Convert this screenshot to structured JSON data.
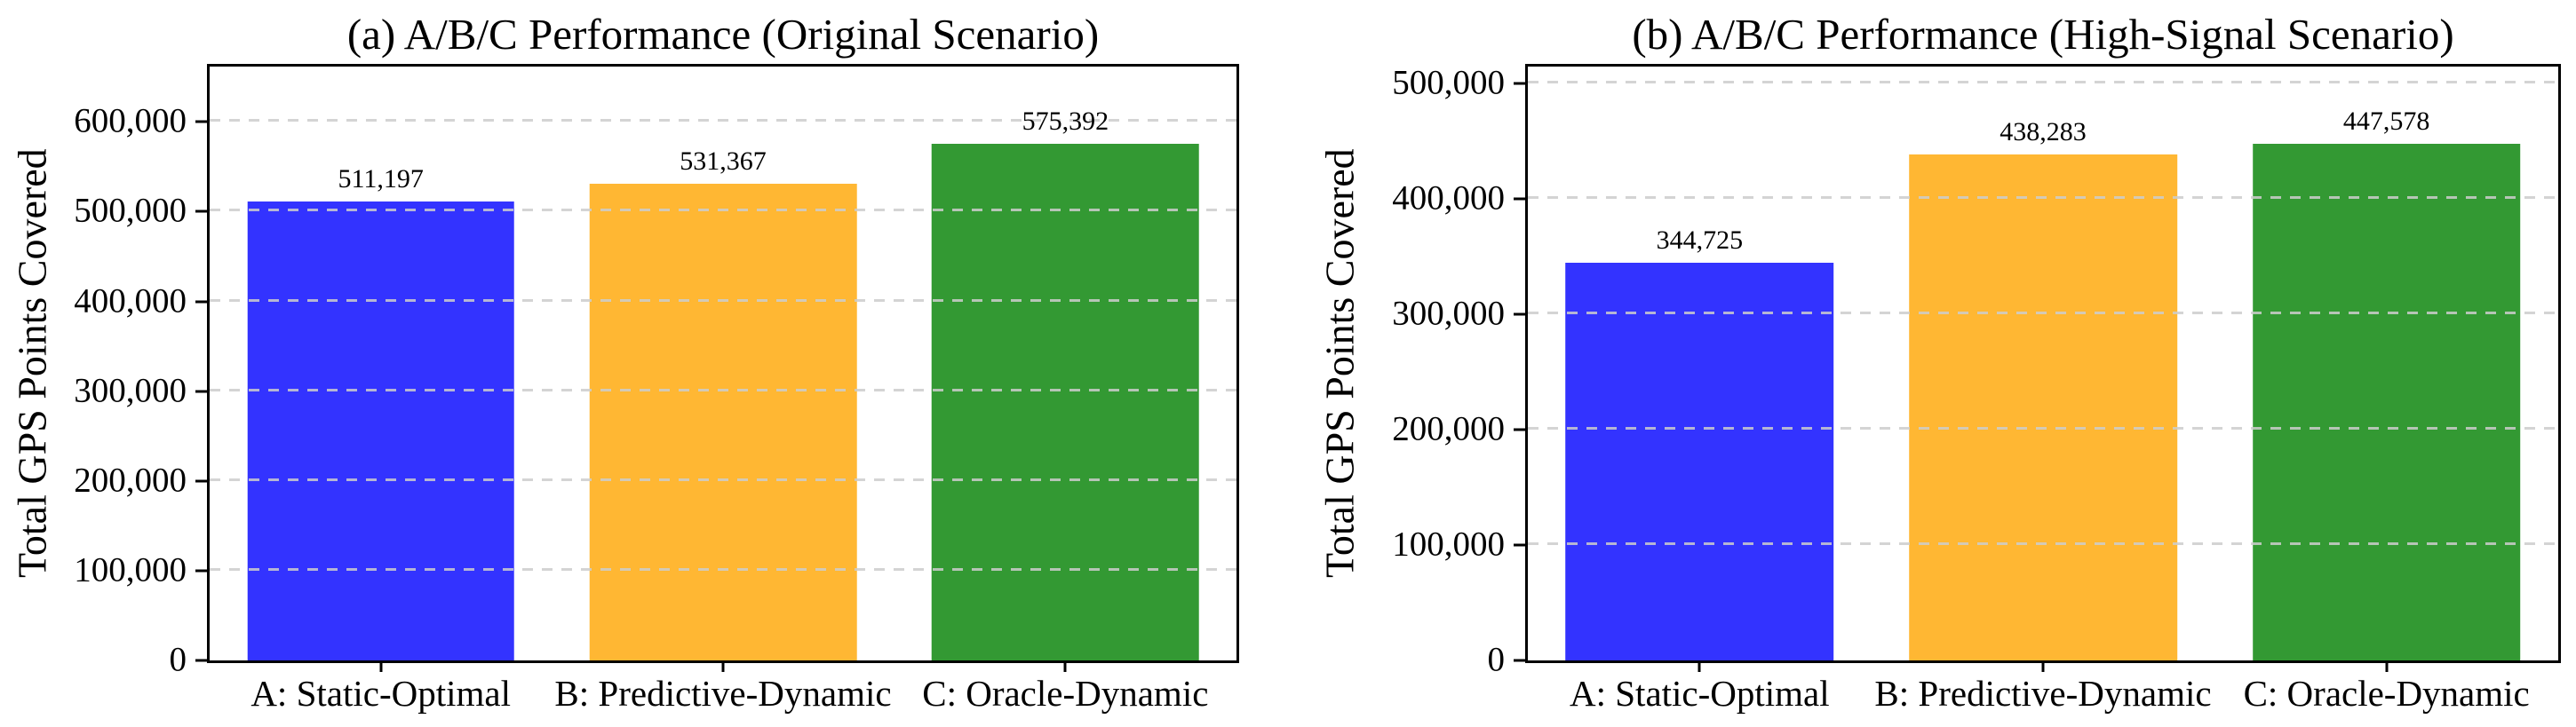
{
  "figure": {
    "background": "#ffffff",
    "text_color": "#000000",
    "spine_color": "#000000"
  },
  "chart_data": [
    {
      "type": "bar",
      "title": "(a) A/B/C Performance (Original Scenario)",
      "ylabel": "Total GPS Points Covered",
      "xlabel": "",
      "categories": [
        "A: Static-Optimal",
        "B: Predictive-Dynamic",
        "C: Oracle-Dynamic"
      ],
      "values": [
        511197,
        531367,
        575392
      ],
      "value_labels": [
        "511,197",
        "531,367",
        "575,392"
      ],
      "bar_colors": [
        "#3333ff",
        "#ffb733",
        "#339933"
      ],
      "ylim": [
        0,
        661700
      ],
      "yticks": [
        0,
        100000,
        200000,
        300000,
        400000,
        500000,
        600000
      ],
      "ytick_labels": [
        "0",
        "100,000",
        "200,000",
        "300,000",
        "400,000",
        "500,000",
        "600,000"
      ],
      "grid": {
        "axis": "y",
        "style": "dashed",
        "color": "#cdcdcd",
        "above_bars": true
      },
      "legend": "none"
    },
    {
      "type": "bar",
      "title": "(b) A/B/C Performance (High-Signal Scenario)",
      "ylabel": "Total GPS Points Covered",
      "xlabel": "",
      "categories": [
        "A: Static-Optimal",
        "B: Predictive-Dynamic",
        "C: Oracle-Dynamic"
      ],
      "values": [
        344725,
        438283,
        447578
      ],
      "value_labels": [
        "344,725",
        "438,283",
        "447,578"
      ],
      "bar_colors": [
        "#3333ff",
        "#ffb733",
        "#339933"
      ],
      "ylim": [
        0,
        514715
      ],
      "yticks": [
        0,
        100000,
        200000,
        300000,
        400000,
        500000
      ],
      "ytick_labels": [
        "0",
        "100,000",
        "200,000",
        "300,000",
        "400,000",
        "500,000"
      ],
      "grid": {
        "axis": "y",
        "style": "dashed",
        "color": "#cdcdcd",
        "above_bars": true
      },
      "legend": "none"
    }
  ]
}
